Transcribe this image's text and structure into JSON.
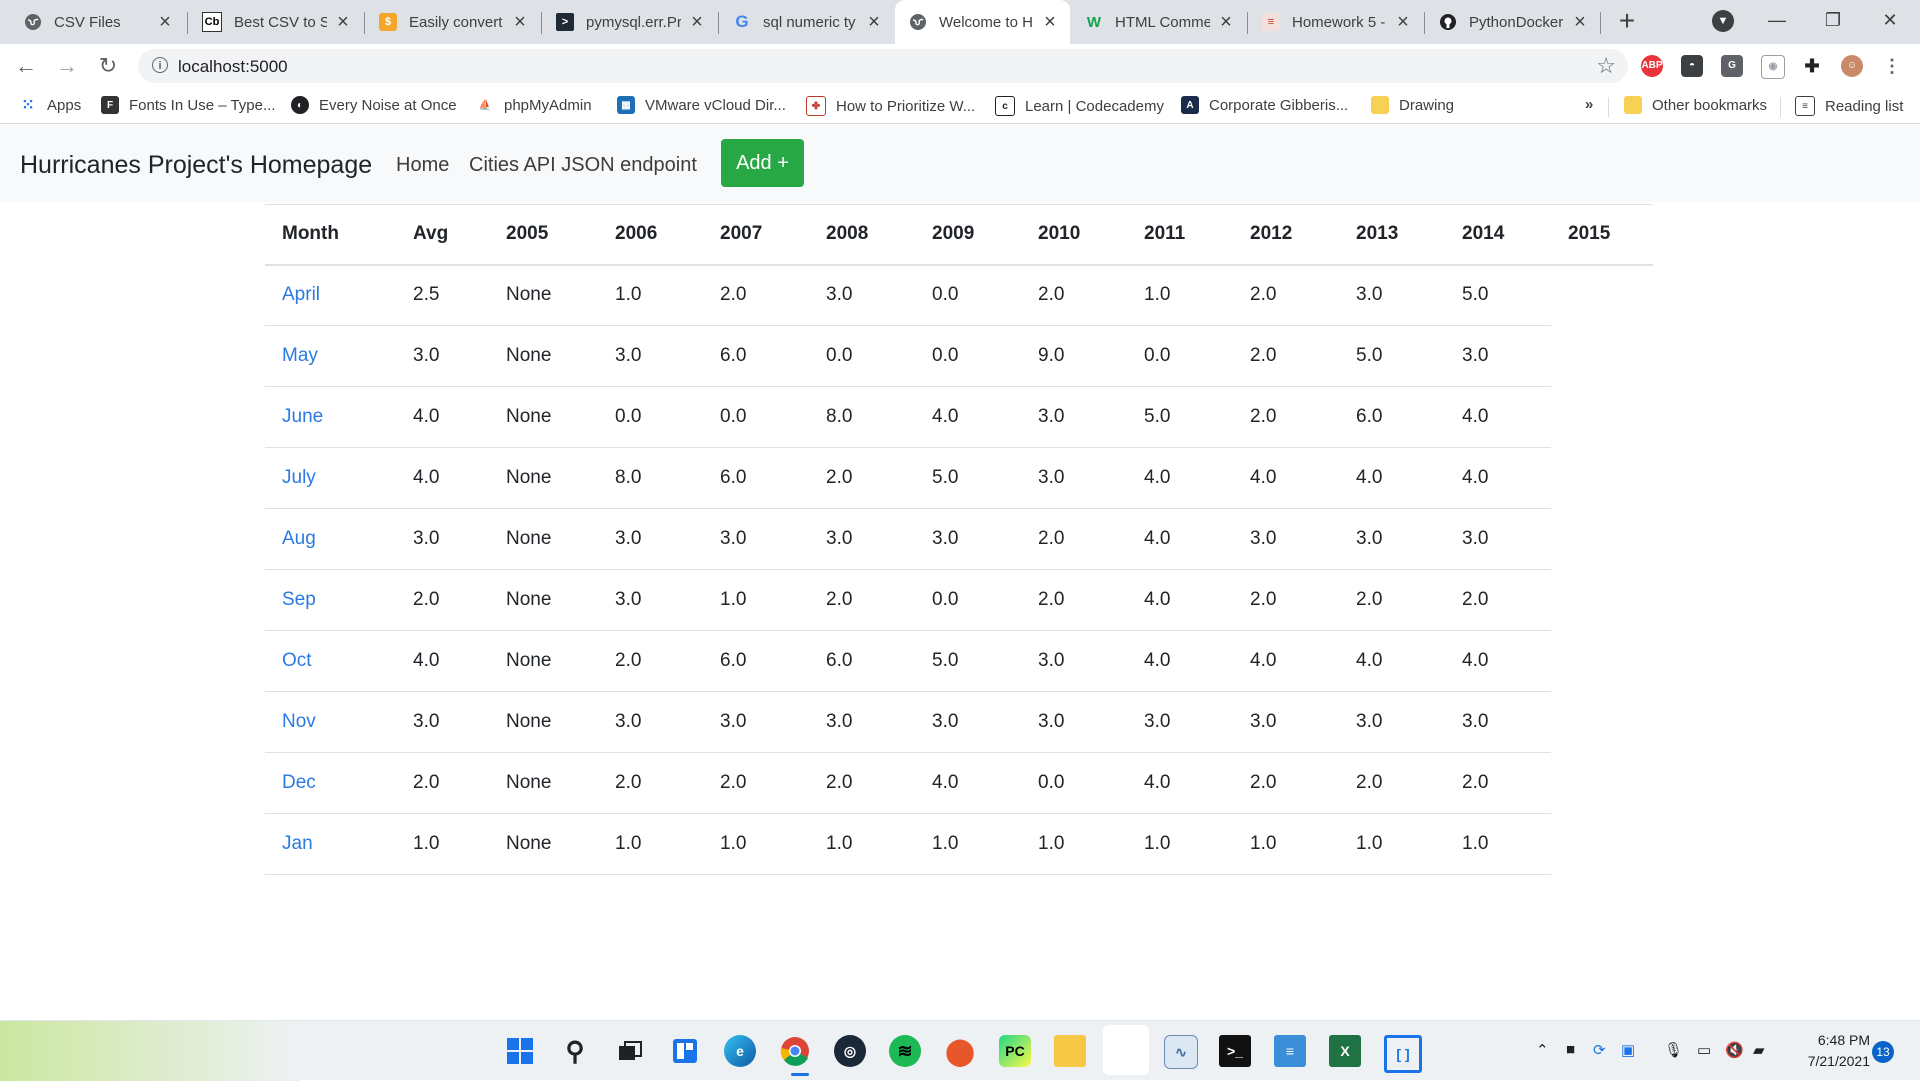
{
  "browser": {
    "tabs": [
      {
        "title": "CSV Files",
        "icon": "globe-icon",
        "active": false
      },
      {
        "title": "Best CSV to SC",
        "icon": "cb-icon",
        "active": false
      },
      {
        "title": "Easily convert",
        "icon": "dollar-icon",
        "active": false
      },
      {
        "title": "pymysql.err.Pr",
        "icon": "terminal-icon",
        "active": false
      },
      {
        "title": "sql numeric ty",
        "icon": "google-icon",
        "active": false
      },
      {
        "title": "Welcome to H",
        "icon": "globe-icon",
        "active": true
      },
      {
        "title": "HTML Comme",
        "icon": "w-icon",
        "active": false
      },
      {
        "title": "Homework 5 -",
        "icon": "doc-icon",
        "active": false
      },
      {
        "title": "PythonDocker",
        "icon": "github-icon",
        "active": false
      }
    ],
    "url": "localhost:5000",
    "bookmarks": [
      {
        "label": "Apps",
        "icon": "apps-grid-icon"
      },
      {
        "label": "Fonts In Use – Type...",
        "icon": "fonts-icon"
      },
      {
        "label": "Every Noise at Once",
        "icon": "globe-icon"
      },
      {
        "label": "phpMyAdmin",
        "icon": "phpmyadmin-icon"
      },
      {
        "label": "VMware vCloud Dir...",
        "icon": "vmware-icon"
      },
      {
        "label": "How to Prioritize W...",
        "icon": "puzzle-icon"
      },
      {
        "label": "Learn | Codecademy",
        "icon": "codecademy-icon"
      },
      {
        "label": "Corporate Gibberis...",
        "icon": "a-icon"
      },
      {
        "label": "Drawing",
        "icon": "folder-icon"
      }
    ],
    "bookmarks_overflow": "»",
    "other_bookmarks": "Other bookmarks",
    "reading_list": "Reading list"
  },
  "navbar": {
    "brand": "Hurricanes Project's Homepage",
    "links": [
      "Home",
      "Cities API JSON endpoint"
    ],
    "add_button": "Add +"
  },
  "table": {
    "headers": [
      "Month",
      "Avg",
      "2005",
      "2006",
      "2007",
      "2008",
      "2009",
      "2010",
      "2011",
      "2012",
      "2013",
      "2014",
      "2015"
    ],
    "rows": [
      [
        "April",
        "2.5",
        "None",
        "1.0",
        "2.0",
        "3.0",
        "0.0",
        "2.0",
        "1.0",
        "2.0",
        "3.0",
        "5.0"
      ],
      [
        "May",
        "3.0",
        "None",
        "3.0",
        "6.0",
        "0.0",
        "0.0",
        "9.0",
        "0.0",
        "2.0",
        "5.0",
        "3.0"
      ],
      [
        "June",
        "4.0",
        "None",
        "0.0",
        "0.0",
        "8.0",
        "4.0",
        "3.0",
        "5.0",
        "2.0",
        "6.0",
        "4.0"
      ],
      [
        "July",
        "4.0",
        "None",
        "8.0",
        "6.0",
        "2.0",
        "5.0",
        "3.0",
        "4.0",
        "4.0",
        "4.0",
        "4.0"
      ],
      [
        "Aug",
        "3.0",
        "None",
        "3.0",
        "3.0",
        "3.0",
        "3.0",
        "2.0",
        "4.0",
        "3.0",
        "3.0",
        "3.0"
      ],
      [
        "Sep",
        "2.0",
        "None",
        "3.0",
        "1.0",
        "2.0",
        "0.0",
        "2.0",
        "4.0",
        "2.0",
        "2.0",
        "2.0"
      ],
      [
        "Oct",
        "4.0",
        "None",
        "2.0",
        "6.0",
        "6.0",
        "5.0",
        "3.0",
        "4.0",
        "4.0",
        "4.0",
        "4.0"
      ],
      [
        "Nov",
        "3.0",
        "None",
        "3.0",
        "3.0",
        "3.0",
        "3.0",
        "3.0",
        "3.0",
        "3.0",
        "3.0",
        "3.0"
      ],
      [
        "Dec",
        "2.0",
        "None",
        "2.0",
        "2.0",
        "2.0",
        "4.0",
        "0.0",
        "4.0",
        "2.0",
        "2.0",
        "2.0"
      ],
      [
        "Jan",
        "1.0",
        "None",
        "1.0",
        "1.0",
        "1.0",
        "1.0",
        "1.0",
        "1.0",
        "1.0",
        "1.0",
        "1.0"
      ]
    ]
  },
  "taskbar": {
    "apps": [
      "windows-start-icon",
      "search-icon",
      "task-view-icon",
      "widgets-icon",
      "edge-icon",
      "chrome-icon",
      "steam-icon",
      "spotify-icon",
      "maps-icon",
      "pycharm-icon",
      "file-explorer-icon",
      "blank-app-icon",
      "performance-monitor-icon",
      "terminal-icon",
      "notepad-icon",
      "excel-icon",
      "bracket-app-icon"
    ],
    "time": "6:48 PM",
    "date": "7/21/2021",
    "notification_count": "13"
  },
  "colors": {
    "add_button": "#28a745",
    "link": "#2a7ae2",
    "navbar_bg": "#f8f9fa",
    "tabstrip_bg": "#dee1e6"
  }
}
